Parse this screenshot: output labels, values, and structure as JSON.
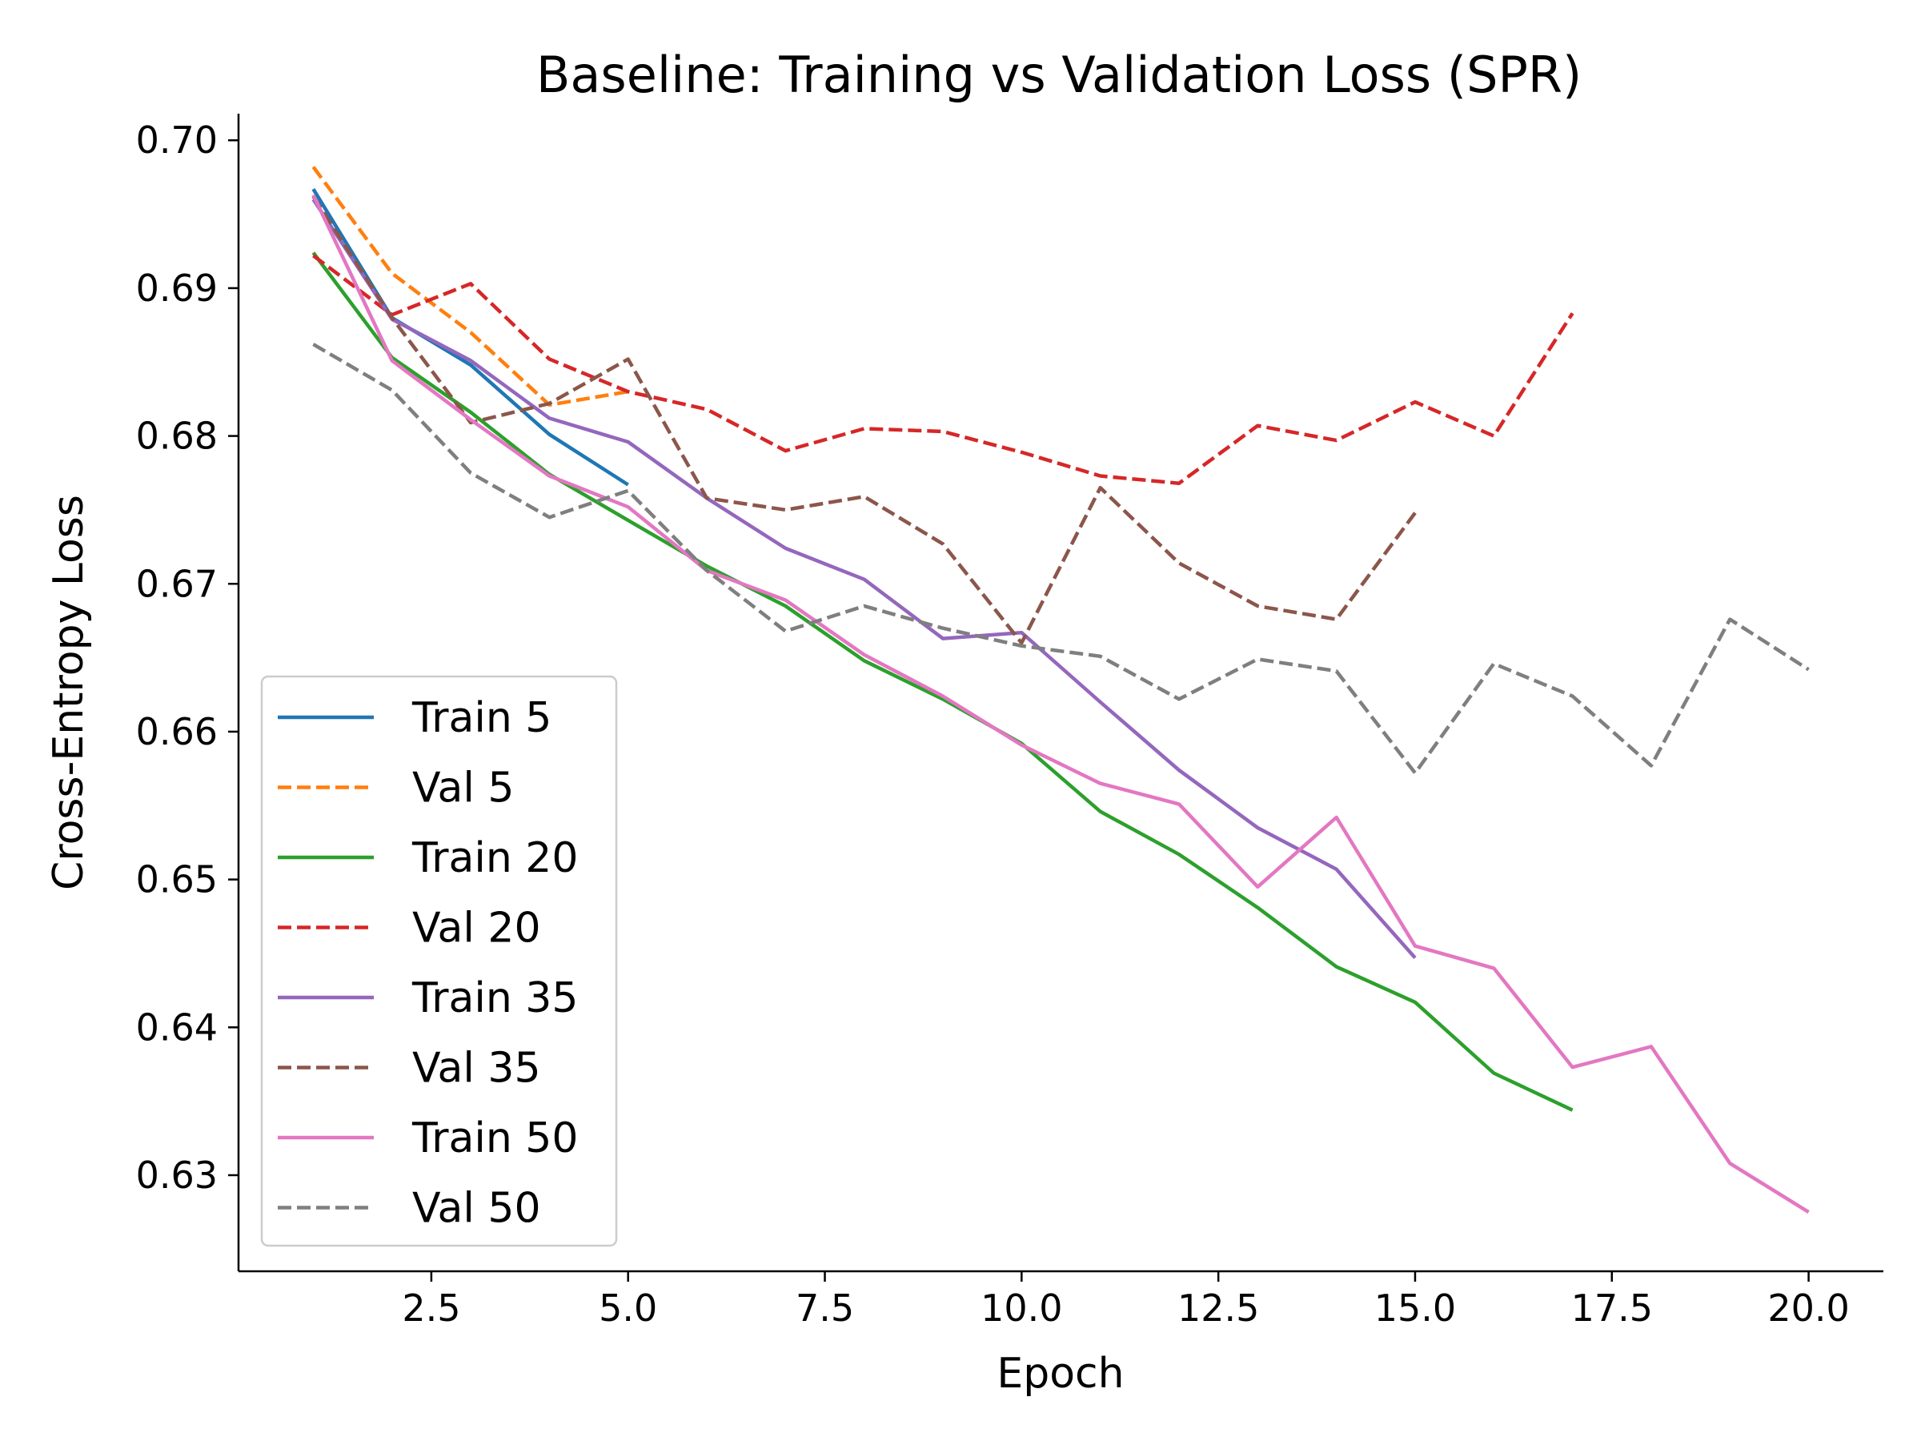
{
  "chart_data": {
    "type": "line",
    "title": "Baseline: Training vs Validation Loss (SPR)",
    "xlabel": "Epoch",
    "ylabel": "Cross-Entropy Loss",
    "xlim": [
      0.05,
      20.95
    ],
    "ylim": [
      0.6235,
      0.7018
    ],
    "xticks": [
      2.5,
      5.0,
      7.5,
      10.0,
      12.5,
      15.0,
      17.5,
      20.0
    ],
    "xtick_labels": [
      "2.5",
      "5.0",
      "7.5",
      "10.0",
      "12.5",
      "15.0",
      "17.5",
      "20.0"
    ],
    "yticks": [
      0.63,
      0.64,
      0.65,
      0.66,
      0.67,
      0.68,
      0.69,
      0.7
    ],
    "ytick_labels": [
      "0.63",
      "0.64",
      "0.65",
      "0.66",
      "0.67",
      "0.68",
      "0.69",
      "0.70"
    ],
    "grid": false,
    "legend_position": "lower-left",
    "series": [
      {
        "name": "Train 5",
        "color": "#1f77b4",
        "dash": "solid",
        "x": [
          1,
          2,
          3,
          4,
          5
        ],
        "y": [
          0.6967,
          0.688,
          0.6848,
          0.6801,
          0.6767
        ]
      },
      {
        "name": "Val 5",
        "color": "#ff7f0e",
        "dash": "dashed",
        "x": [
          1,
          2,
          3,
          4,
          5
        ],
        "y": [
          0.6982,
          0.691,
          0.687,
          0.6821,
          0.683
        ]
      },
      {
        "name": "Train 20",
        "color": "#2ca02c",
        "dash": "solid",
        "x": [
          1,
          2,
          3,
          4,
          5,
          6,
          7,
          8,
          9,
          10,
          11,
          12,
          13,
          14,
          15,
          16,
          17
        ],
        "y": [
          0.6924,
          0.6853,
          0.6816,
          0.6774,
          0.6743,
          0.6712,
          0.6685,
          0.6648,
          0.6622,
          0.6592,
          0.6546,
          0.6517,
          0.6481,
          0.6441,
          0.6417,
          0.6369,
          0.6344
        ]
      },
      {
        "name": "Val 20",
        "color": "#d62728",
        "dash": "dashed",
        "x": [
          1,
          2,
          3,
          4,
          5,
          6,
          7,
          8,
          9,
          10,
          11,
          12,
          13,
          14,
          15,
          16,
          17
        ],
        "y": [
          0.6922,
          0.6882,
          0.6903,
          0.6852,
          0.683,
          0.6818,
          0.679,
          0.6805,
          0.6803,
          0.6789,
          0.6773,
          0.6768,
          0.6807,
          0.6797,
          0.6823,
          0.68,
          0.6883
        ]
      },
      {
        "name": "Train 35",
        "color": "#9467bd",
        "dash": "solid",
        "x": [
          1,
          2,
          3,
          4,
          5,
          6,
          7,
          8,
          9,
          10,
          11,
          12,
          13,
          14,
          15
        ],
        "y": [
          0.696,
          0.6879,
          0.6851,
          0.6812,
          0.6796,
          0.6758,
          0.6724,
          0.6703,
          0.6663,
          0.6667,
          0.662,
          0.6574,
          0.6535,
          0.6507,
          0.6447
        ]
      },
      {
        "name": "Val 35",
        "color": "#8c564b",
        "dash": "dashed",
        "x": [
          1,
          2,
          3,
          4,
          5,
          6,
          7,
          8,
          9,
          10,
          11,
          12,
          13,
          14,
          15
        ],
        "y": [
          0.6962,
          0.688,
          0.6809,
          0.6822,
          0.6852,
          0.6758,
          0.675,
          0.6759,
          0.6727,
          0.666,
          0.6765,
          0.6714,
          0.6685,
          0.6676,
          0.6748
        ]
      },
      {
        "name": "Train 50",
        "color": "#e377c2",
        "dash": "solid",
        "x": [
          1,
          2,
          3,
          4,
          5,
          6,
          7,
          8,
          9,
          10,
          11,
          12,
          13,
          14,
          15,
          16,
          17,
          18,
          19,
          20
        ],
        "y": [
          0.6963,
          0.6851,
          0.6811,
          0.6773,
          0.6752,
          0.6709,
          0.6689,
          0.6652,
          0.6624,
          0.6591,
          0.6565,
          0.6551,
          0.6495,
          0.6542,
          0.6455,
          0.644,
          0.6373,
          0.6387,
          0.6308,
          0.6275
        ]
      },
      {
        "name": "Val 50",
        "color": "#7f7f7f",
        "dash": "dashed",
        "x": [
          1,
          2,
          3,
          4,
          5,
          6,
          7,
          8,
          9,
          10,
          11,
          12,
          13,
          14,
          15,
          16,
          17,
          18,
          19,
          20
        ],
        "y": [
          0.6862,
          0.6831,
          0.6775,
          0.6745,
          0.6763,
          0.6709,
          0.6668,
          0.6685,
          0.667,
          0.6658,
          0.6651,
          0.6622,
          0.6649,
          0.6641,
          0.6572,
          0.6646,
          0.6624,
          0.6577,
          0.6676,
          0.6642
        ]
      }
    ]
  }
}
